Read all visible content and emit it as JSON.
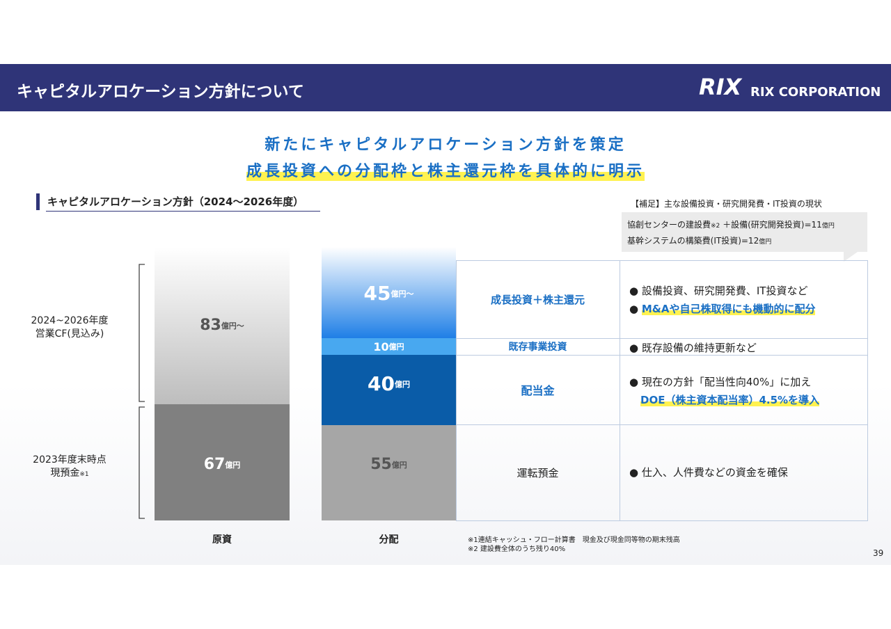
{
  "header": {
    "title": "キャピタルアロケーション方針について",
    "logo_mark": "RIX",
    "logo_text": "RIX CORPORATION"
  },
  "headline": [
    "新たにキャピタルアロケーション方針を策定",
    "成長投資への分配枠と株主還元枠を具体的に明示"
  ],
  "section_title": "キャピタルアロケーション方針（2024～2026年度）",
  "note": {
    "title": "【補足】主な設備投資・研究開発費・IT投資の現状",
    "lines": [
      [
        "協創センターの建設費",
        "※2",
        "＋設備(研究開発投資)=11",
        "億円"
      ],
      [
        "基幹システムの構築費(IT投資)=12",
        "億円"
      ]
    ]
  },
  "source": {
    "brace_labels": [
      [
        "2024~2026年度",
        "営業CF(見込み)"
      ],
      [
        "2023年度末時点",
        "現預金",
        "※1"
      ]
    ],
    "blocks": [
      [
        "83",
        "億円～"
      ],
      [
        "67",
        "億円"
      ]
    ],
    "axis_label": "原資"
  },
  "distribution": {
    "blocks": [
      [
        "45",
        "億円～"
      ],
      [
        "10",
        "億円"
      ],
      [
        "40",
        "億円"
      ],
      [
        "55",
        "億円"
      ]
    ],
    "axis_label": "分配"
  },
  "table": {
    "rows": [
      {
        "category": "成長投資＋株主還元",
        "items": [
          "設備投資、研究開発費、IT投資など",
          "M&Aや自己株取得にも機動的に配分"
        ]
      },
      {
        "category": "既存事業投資",
        "items": [
          "既存設備の維持更新など"
        ]
      },
      {
        "category": "配当金",
        "items": [
          "現在の方針「配当性向40%」に加え",
          "DOE（株主資本配当率）4.5%を導入"
        ]
      },
      {
        "category": "運転預金",
        "items": [
          "仕入、人件費などの資金を確保"
        ]
      }
    ]
  },
  "footnotes": [
    "※1連結キャッシュ・フロー計算書　現金及び現金同等物の期末残高",
    "※2 建設費全体のうち残り40%"
  ],
  "page_number": "39"
}
